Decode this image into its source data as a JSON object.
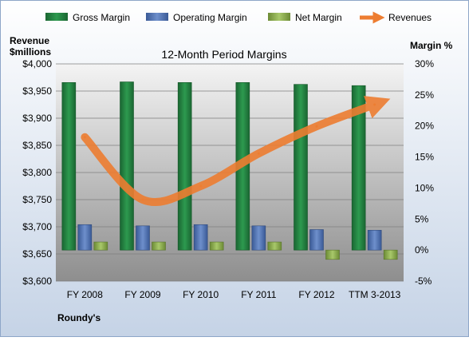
{
  "chart_data": {
    "type": "bar",
    "title": "12-Month Period Margins",
    "categories": [
      "FY 2008",
      "FY 2009",
      "FY 2010",
      "FY 2011",
      "FY 2012",
      "TTM 3-2013"
    ],
    "series": [
      {
        "name": "Gross Margin",
        "type": "bar",
        "axis": "right",
        "color": "#1f7a3d",
        "values": [
          27.0,
          27.1,
          27.0,
          27.0,
          26.7,
          26.5
        ]
      },
      {
        "name": "Operating Margin",
        "type": "bar",
        "axis": "right",
        "color": "#4a6fb0",
        "values": [
          4.1,
          3.9,
          4.1,
          3.9,
          3.3,
          3.2
        ]
      },
      {
        "name": "Net Margin",
        "type": "bar",
        "axis": "right",
        "color": "#8aa84a",
        "values": [
          1.3,
          1.3,
          1.3,
          1.3,
          -1.5,
          -1.5
        ]
      },
      {
        "name": "Revenues",
        "type": "line",
        "axis": "left",
        "color": "#ed7d31",
        "values": [
          3865,
          3750,
          3775,
          3835,
          3885,
          3925
        ]
      }
    ],
    "ylabel_left": "Revenue $millions",
    "ylabel_right": "Margin %",
    "yticks_left": [
      "$3,600",
      "$3,650",
      "$3,700",
      "$3,750",
      "$3,800",
      "$3,850",
      "$3,900",
      "$3,950",
      "$4,000"
    ],
    "yticks_right": [
      "-5%",
      "0%",
      "5%",
      "10%",
      "15%",
      "20%",
      "25%",
      "30%"
    ],
    "ylim_left": [
      3600,
      4000
    ],
    "ylim_right": [
      -5,
      30
    ],
    "legend_position": "top",
    "footer": "Roundy's"
  }
}
